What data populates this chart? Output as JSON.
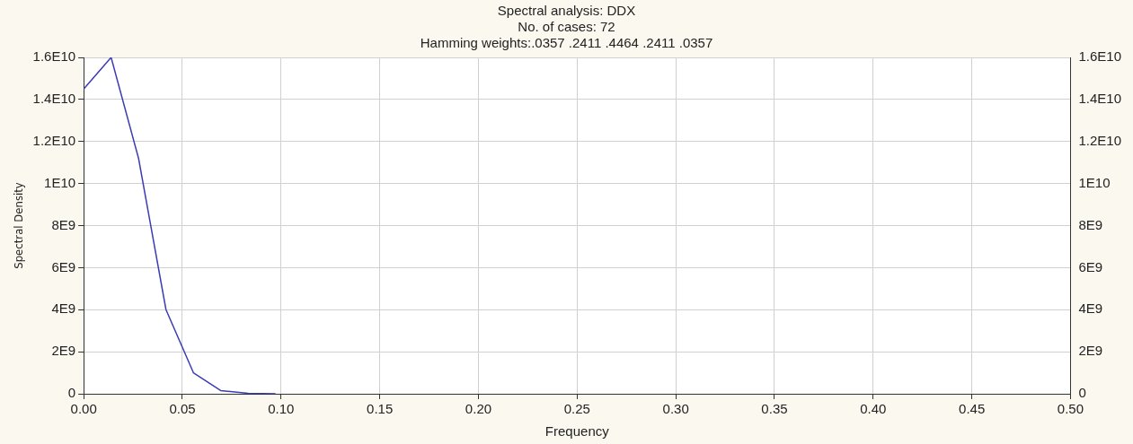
{
  "chart_data": {
    "type": "line",
    "title": "Spectral analysis: DDX",
    "subtitle": "No. of cases: 72",
    "annotations": [
      "Hamming weights:.0357 .2411 .4464 .2411 .0357"
    ],
    "xlabel": "Frequency",
    "ylabel": "Spectral Density",
    "x": [
      0,
      0.0139,
      0.0278,
      0.0417,
      0.0556,
      0.0694,
      0.0833,
      0.0972
    ],
    "series": [
      {
        "color": "#3c3cb4",
        "values": [
          14500000000,
          16000000000,
          11200000000,
          4000000000,
          1000000000,
          150000000,
          20000000,
          0
        ]
      }
    ],
    "xlim": [
      0,
      0.5
    ],
    "xticks": [
      {
        "value": 0,
        "label": "0.00"
      },
      {
        "value": 0.05,
        "label": "0.05"
      },
      {
        "value": 0.1,
        "label": "0.10"
      },
      {
        "value": 0.15,
        "label": "0.15"
      },
      {
        "value": 0.2,
        "label": "0.20"
      },
      {
        "value": 0.25,
        "label": "0.25"
      },
      {
        "value": 0.3,
        "label": "0.30"
      },
      {
        "value": 0.35,
        "label": "0.35"
      },
      {
        "value": 0.4,
        "label": "0.40"
      },
      {
        "value": 0.45,
        "label": "0.45"
      },
      {
        "value": 0.5,
        "label": "0.50"
      }
    ],
    "ylim": [
      0,
      16000000000
    ],
    "yticks": [
      0,
      {
        "value": 2000000000,
        "label": "2E9"
      },
      {
        "value": 4000000000,
        "label": "4E9"
      },
      {
        "value": 6000000000,
        "label": "6E9"
      },
      {
        "value": 8000000000,
        "label": "8E9"
      },
      {
        "value": 10000000000,
        "label": "1E10"
      },
      {
        "value": 12000000000,
        "label": "1.2E10"
      },
      {
        "value": 14000000000,
        "label": "1.4E10"
      },
      {
        "value": 16000000000,
        "label": "1.6E10"
      }
    ],
    "y2lim": [
      0,
      16000000000
    ],
    "y2ticks": [
      0,
      {
        "value": 2000000000,
        "label": "2E9"
      },
      {
        "value": 4000000000,
        "label": "4E9"
      },
      {
        "value": 6000000000,
        "label": "6E9"
      },
      {
        "value": 8000000000,
        "label": "8E9"
      },
      {
        "value": 10000000000,
        "label": "1E10"
      },
      {
        "value": 12000000000,
        "label": "1.2E10"
      },
      {
        "value": 14000000000,
        "label": "1.4E10"
      },
      {
        "value": 16000000000,
        "label": "1.6E10"
      }
    ],
    "grid": true,
    "legend": false,
    "marker": "none",
    "line_style": "solid"
  }
}
